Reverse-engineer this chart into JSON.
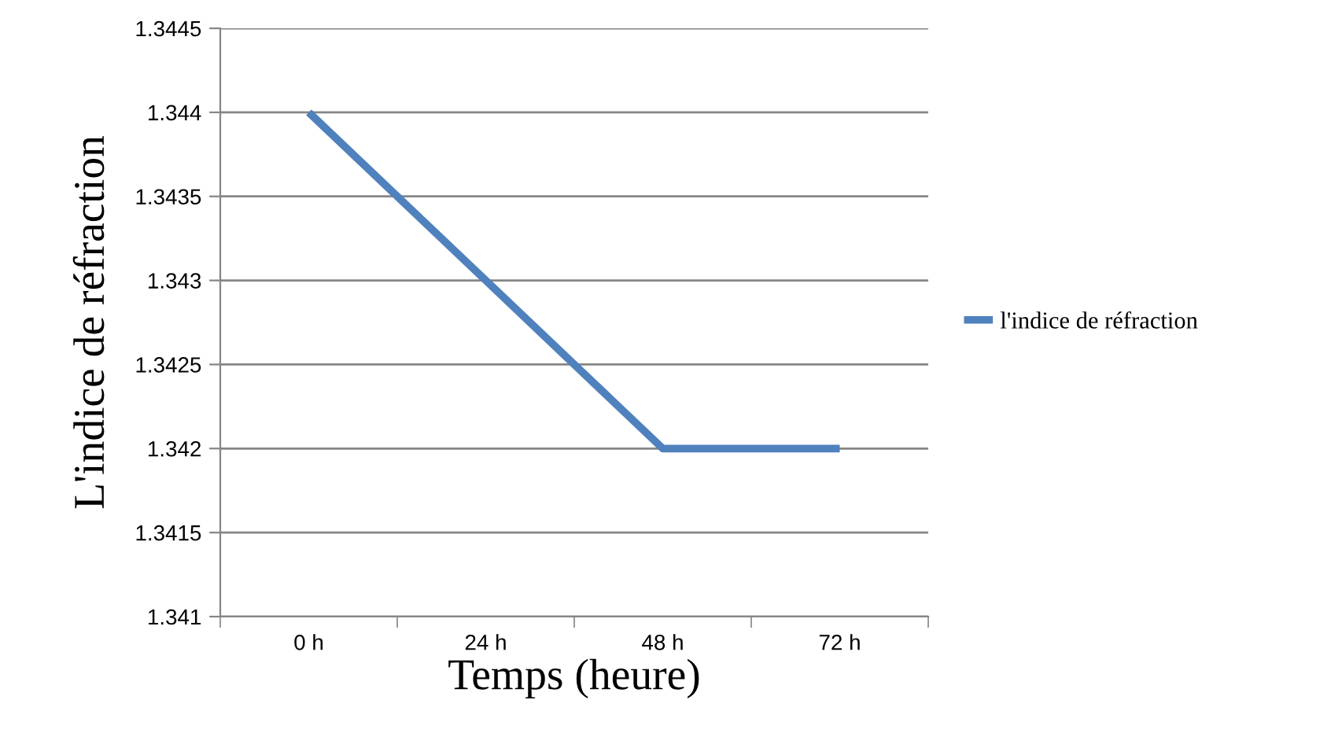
{
  "chart_data": {
    "type": "line",
    "xlabel": "Temps (heure)",
    "ylabel": "L'indice de réfraction",
    "categories": [
      "0 h",
      "24 h",
      "48 h",
      "72 h"
    ],
    "series": [
      {
        "name": "l'indice de réfraction",
        "color": "#4f81bd",
        "values": [
          1.344,
          1.343,
          1.342,
          1.342
        ]
      }
    ],
    "ylim": [
      1.341,
      1.3445
    ],
    "yticks": [
      1.341,
      1.3415,
      1.342,
      1.3425,
      1.343,
      1.3435,
      1.344,
      1.3445
    ],
    "grid": "y",
    "legend": "right",
    "marker": "none",
    "line_style": "solid"
  }
}
